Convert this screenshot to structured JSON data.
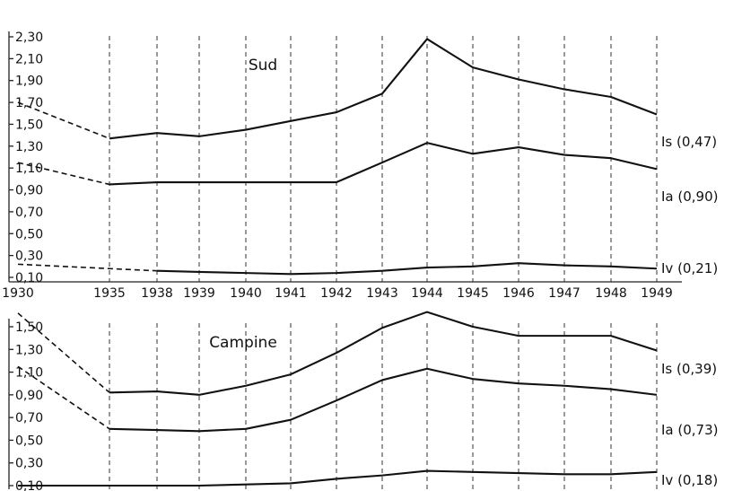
{
  "chart_data": [
    {
      "type": "line",
      "title": "Sud",
      "x": [
        "1930",
        "1935",
        "1938",
        "1939",
        "1940",
        "1941",
        "1942",
        "1943",
        "1944",
        "1945",
        "1946",
        "1947",
        "1948",
        "1949"
      ],
      "ylim": [
        0.1,
        2.3
      ],
      "yticks": [
        "0,10",
        "0,30",
        "0,50",
        "0,70",
        "0,90",
        "1,10",
        "1,30",
        "1,50",
        "1,70",
        "1,90",
        "2,10",
        "2,30"
      ],
      "series": [
        {
          "name": "Is (0,47)",
          "values": [
            1.7,
            1.37,
            1.42,
            1.39,
            1.45,
            1.53,
            1.61,
            1.78,
            2.28,
            2.02,
            1.91,
            1.82,
            1.75,
            1.59
          ],
          "dashed_until": 1
        },
        {
          "name": "Ia (0,90)",
          "values": [
            1.15,
            0.95,
            0.97,
            0.97,
            0.97,
            0.97,
            0.97,
            1.15,
            1.33,
            1.23,
            1.29,
            1.22,
            1.19,
            1.09
          ],
          "dashed_until": 1
        },
        {
          "name": "Iv (0,21)",
          "values": [
            0.22,
            0.18,
            0.16,
            0.15,
            0.14,
            0.13,
            0.14,
            0.16,
            0.19,
            0.2,
            0.23,
            0.21,
            0.2,
            0.18
          ],
          "dashed_until": 2
        }
      ]
    },
    {
      "type": "line",
      "title": "Campine",
      "x": [
        "1930",
        "1935",
        "1938",
        "1939",
        "1940",
        "1941",
        "1942",
        "1943",
        "1944",
        "1945",
        "1946",
        "1947",
        "1948",
        "1949"
      ],
      "ylim": [
        0.1,
        1.5
      ],
      "yticks": [
        "0,10",
        "0,30",
        "0,50",
        "0,70",
        "0,90",
        "1,10",
        "1,30",
        "1,50"
      ],
      "series": [
        {
          "name": "Is (0,39)",
          "values": [
            1.62,
            0.92,
            0.93,
            0.9,
            0.98,
            1.08,
            1.27,
            1.49,
            1.63,
            1.5,
            1.42,
            1.42,
            1.42,
            1.29
          ],
          "dashed_until": 1
        },
        {
          "name": "Ia (0,73)",
          "values": [
            1.15,
            0.6,
            0.59,
            0.58,
            0.6,
            0.68,
            0.85,
            1.03,
            1.13,
            1.04,
            1.0,
            0.98,
            0.95,
            0.9
          ],
          "dashed_until": 1
        },
        {
          "name": "Iv (0,18)",
          "values": [
            0.1,
            0.1,
            0.1,
            0.1,
            0.11,
            0.12,
            0.16,
            0.19,
            0.23,
            0.22,
            0.21,
            0.2,
            0.2,
            0.22
          ],
          "dashed_until": 0
        }
      ]
    }
  ]
}
